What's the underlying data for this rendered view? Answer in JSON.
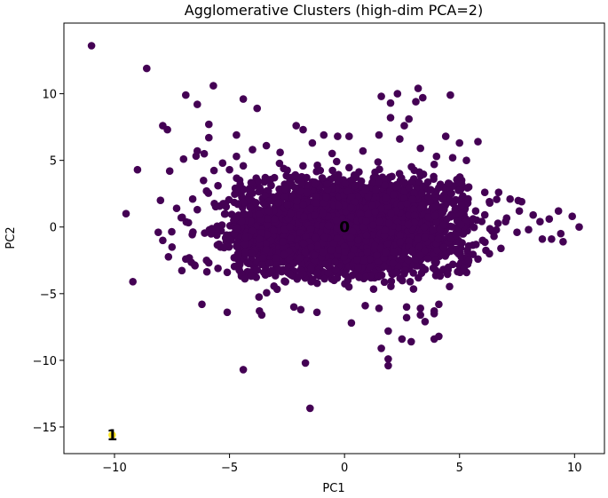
{
  "chart_data": {
    "type": "scatter",
    "title": "Agglomerative Clusters (high-dim PCA=2)",
    "xlabel": "PC1",
    "ylabel": "PC2",
    "xlim": [
      -12.2,
      11.3
    ],
    "ylim": [
      -17.0,
      15.3
    ],
    "xticks": [
      -10,
      -5,
      0,
      5,
      10
    ],
    "yticks": [
      -15,
      -10,
      -5,
      0,
      5,
      10
    ],
    "xtick_labels": [
      "−10",
      "−5",
      "0",
      "5",
      "10"
    ],
    "ytick_labels": [
      "−15",
      "−10",
      "−5",
      "0",
      "5",
      "10"
    ],
    "grid": false,
    "legend": "none",
    "series": [
      {
        "cluster": 0,
        "color": "#440154",
        "cloud": {
          "description_of_density": "dense central mass",
          "center": [
            0.0,
            0.0
          ],
          "x_range": [
            -7.5,
            8.0
          ],
          "y_range": [
            -4.7,
            4.7
          ]
        },
        "points": [
          [
            -11.0,
            13.6
          ],
          [
            -8.6,
            11.9
          ],
          [
            -6.9,
            9.9
          ],
          [
            -6.4,
            9.2
          ],
          [
            -5.7,
            10.6
          ],
          [
            -7.9,
            7.6
          ],
          [
            -7.7,
            7.3
          ],
          [
            -5.9,
            7.7
          ],
          [
            -9.0,
            4.3
          ],
          [
            -7.6,
            4.2
          ],
          [
            -7.0,
            5.1
          ],
          [
            -9.5,
            1.0
          ],
          [
            -7.9,
            -1.0
          ],
          [
            -9.2,
            -4.1
          ],
          [
            -6.2,
            -5.8
          ],
          [
            -4.4,
            -10.7
          ],
          [
            -1.7,
            -10.2
          ],
          [
            -1.5,
            -13.6
          ],
          [
            -5.1,
            -6.4
          ],
          [
            -3.7,
            -6.3
          ],
          [
            -3.6,
            -6.6
          ],
          [
            -2.2,
            -6.0
          ],
          [
            -1.9,
            -6.2
          ],
          [
            -1.2,
            -6.4
          ],
          [
            0.3,
            -7.2
          ],
          [
            0.9,
            -5.9
          ],
          [
            1.5,
            -6.1
          ],
          [
            1.9,
            -7.8
          ],
          [
            1.6,
            -9.1
          ],
          [
            1.9,
            -9.9
          ],
          [
            1.9,
            -10.4
          ],
          [
            2.5,
            -8.4
          ],
          [
            2.9,
            -8.6
          ],
          [
            2.7,
            -6.0
          ],
          [
            3.3,
            -6.1
          ],
          [
            3.9,
            -8.4
          ],
          [
            3.5,
            -7.1
          ],
          [
            3.9,
            -6.3
          ],
          [
            4.1,
            -8.2
          ],
          [
            2.7,
            -6.8
          ],
          [
            3.3,
            -6.6
          ],
          [
            4.1,
            -5.8
          ],
          [
            3.9,
            -6.5
          ],
          [
            -4.4,
            9.6
          ],
          [
            -3.8,
            8.9
          ],
          [
            -2.1,
            7.6
          ],
          [
            -1.8,
            7.3
          ],
          [
            -1.4,
            6.3
          ],
          [
            -0.9,
            6.9
          ],
          [
            -0.3,
            6.8
          ],
          [
            0.2,
            6.8
          ],
          [
            0.8,
            5.7
          ],
          [
            1.5,
            6.9
          ],
          [
            2.0,
            9.3
          ],
          [
            2.6,
            7.6
          ],
          [
            3.1,
            9.4
          ],
          [
            3.4,
            9.7
          ],
          [
            3.2,
            10.4
          ],
          [
            4.6,
            9.9
          ],
          [
            2.8,
            8.1
          ],
          [
            2.4,
            6.6
          ],
          [
            3.3,
            5.9
          ],
          [
            4.0,
            5.3
          ],
          [
            4.4,
            6.8
          ],
          [
            5.0,
            6.3
          ],
          [
            5.8,
            6.4
          ],
          [
            4.7,
            5.2
          ],
          [
            3.9,
            4.7
          ],
          [
            5.3,
            5.0
          ],
          [
            1.6,
            9.8
          ],
          [
            2.3,
            10.0
          ],
          [
            2.0,
            8.2
          ],
          [
            -6.4,
            5.7
          ],
          [
            -6.1,
            5.5
          ],
          [
            -5.3,
            4.8
          ],
          [
            -5.0,
            4.3
          ],
          [
            -4.7,
            5.3
          ],
          [
            -4.0,
            5.8
          ],
          [
            -3.4,
            6.1
          ],
          [
            -2.8,
            5.6
          ],
          [
            5.4,
            3.0
          ],
          [
            6.1,
            2.6
          ],
          [
            6.7,
            2.6
          ],
          [
            7.2,
            2.1
          ],
          [
            7.7,
            1.9
          ],
          [
            8.2,
            0.9
          ],
          [
            8.5,
            0.4
          ],
          [
            8.9,
            0.6
          ],
          [
            9.3,
            1.2
          ],
          [
            9.9,
            0.8
          ],
          [
            10.2,
            0.0
          ],
          [
            9.0,
            -0.9
          ],
          [
            9.4,
            -0.5
          ],
          [
            9.5,
            -1.1
          ],
          [
            8.6,
            -0.9
          ],
          [
            8.0,
            -0.2
          ],
          [
            7.5,
            -0.4
          ],
          [
            6.8,
            -1.6
          ],
          [
            6.3,
            -2.0
          ],
          [
            5.8,
            -2.4
          ],
          [
            5.2,
            -3.1
          ],
          [
            5.4,
            -2.5
          ],
          [
            6.0,
            -1.0
          ],
          [
            6.5,
            -0.7
          ],
          [
            7.0,
            0.4
          ],
          [
            7.6,
            1.2
          ],
          [
            6.3,
            1.9
          ],
          [
            5.7,
            1.2
          ],
          [
            -8.1,
            -0.4
          ],
          [
            -7.5,
            -1.5
          ],
          [
            -6.9,
            -2.4
          ],
          [
            -6.5,
            -2.9
          ],
          [
            -6.0,
            -2.5
          ],
          [
            -5.5,
            -3.1
          ],
          [
            -5.1,
            -3.4
          ],
          [
            -4.8,
            -2.3
          ],
          [
            -6.4,
            1.3
          ],
          [
            -7.3,
            1.4
          ],
          [
            -7.1,
            0.7
          ],
          [
            -6.6,
            2.1
          ],
          [
            -6.0,
            2.7
          ],
          [
            -5.5,
            3.1
          ],
          [
            -8.0,
            2.0
          ],
          [
            -4.7,
            6.9
          ],
          [
            -5.9,
            6.7
          ]
        ]
      },
      {
        "cluster": 1,
        "color": "#fde725",
        "points": [
          [
            -10.1,
            -15.6
          ]
        ]
      }
    ],
    "annotations": [
      {
        "text": "0",
        "x": 0.0,
        "y": 0.0,
        "color": "#000000"
      },
      {
        "text": "1",
        "x": -10.1,
        "y": -15.6,
        "color": "#000000"
      }
    ]
  }
}
